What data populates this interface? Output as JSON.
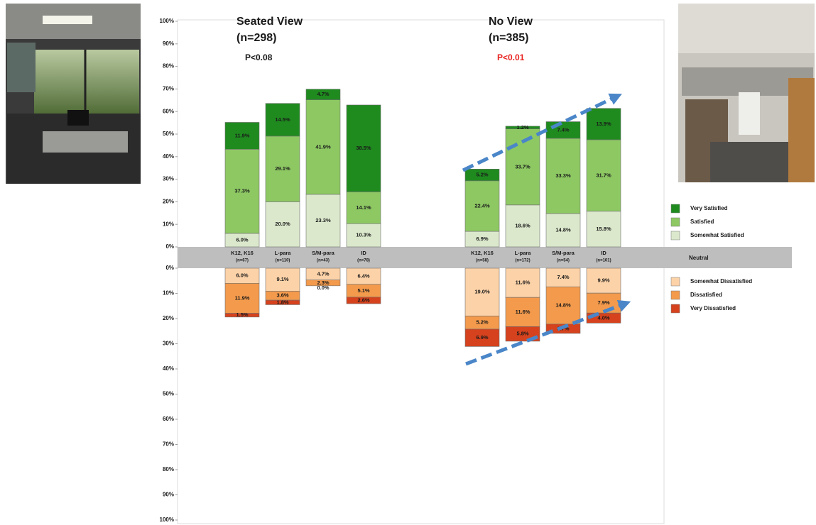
{
  "chart_data": {
    "type": "diverging_stacked_bar",
    "ylim": [
      0,
      100
    ],
    "ylim_lower": [
      0,
      100
    ],
    "yticks": [
      {
        "value": 0,
        "label": "0%"
      },
      {
        "value": 10,
        "label": "10%"
      },
      {
        "value": 20,
        "label": "20%"
      },
      {
        "value": 30,
        "label": "30%"
      },
      {
        "value": 40,
        "label": "40%"
      },
      {
        "value": 50,
        "label": "50%"
      },
      {
        "value": 60,
        "label": "60%"
      },
      {
        "value": 70,
        "label": "70%"
      },
      {
        "value": 80,
        "label": "80%"
      },
      {
        "value": 90,
        "label": "90%"
      },
      {
        "value": 100,
        "label": "100%"
      }
    ],
    "neutral_label": "Neutral",
    "groups": [
      {
        "title": "Seated View",
        "subtitle": "(n=298)",
        "p_value": "P<0.08",
        "p_color": "#1a1a1a",
        "categories": [
          {
            "label": "K12, K16",
            "n": "(n=67)"
          },
          {
            "label": "L-para",
            "n": "(n=110)"
          },
          {
            "label": "S/M-para",
            "n": "(n=43)"
          },
          {
            "label": "ID",
            "n": "(n=78)"
          }
        ]
      },
      {
        "title": "No View",
        "subtitle": "(n=385)",
        "p_value": "P<0.01",
        "p_color": "#e8231e",
        "categories": [
          {
            "label": "K12, K16",
            "n": "(n=58)"
          },
          {
            "label": "L-para",
            "n": "(n=172)"
          },
          {
            "label": "S/M-para",
            "n": "(n=54)"
          },
          {
            "label": "ID",
            "n": "(n=101)"
          }
        ]
      }
    ],
    "series": [
      {
        "name": "Somewhat Satisfied",
        "color": "#dbe8cc",
        "side": "up",
        "values": [
          [
            6.0,
            20.0,
            23.3,
            10.3
          ],
          [
            6.9,
            18.6,
            14.8,
            15.8
          ]
        ],
        "value_labels": [
          [
            "6.0%",
            "20.0%",
            "23.3%",
            "10.3%"
          ],
          [
            "6.9%",
            "18.6%",
            "14.8%",
            "15.8%"
          ]
        ]
      },
      {
        "name": "Satisfied",
        "color": "#8dc863",
        "side": "up",
        "values": [
          [
            37.3,
            29.1,
            41.9,
            14.1
          ],
          [
            22.4,
            33.7,
            33.3,
            31.7
          ]
        ],
        "value_labels": [
          [
            "37.3%",
            "29.1%",
            "41.9%",
            "14.1%"
          ],
          [
            "22.4%",
            "33.7%",
            "33.3%",
            "31.7%"
          ]
        ]
      },
      {
        "name": "Very Satisfied",
        "color": "#1f8b1f",
        "side": "up",
        "values": [
          [
            11.9,
            14.5,
            4.7,
            38.5
          ],
          [
            5.2,
            1.2,
            7.4,
            13.9
          ]
        ],
        "value_labels": [
          [
            "11.9%",
            "14.5%",
            "4.7%",
            "38.5%"
          ],
          [
            "5.2%",
            "1.2%",
            "7.4%",
            "13.9%"
          ]
        ]
      },
      {
        "name": "Somewhat Dissatisfied",
        "color": "#fcd2a8",
        "side": "down",
        "values": [
          [
            6.0,
            9.1,
            4.7,
            6.4
          ],
          [
            19.0,
            11.6,
            7.4,
            9.9
          ]
        ],
        "value_labels": [
          [
            "6.0%",
            "9.1%",
            "4.7%",
            "6.4%"
          ],
          [
            "19.0%",
            "11.6%",
            "7.4%",
            "9.9%"
          ]
        ]
      },
      {
        "name": "Dissatisfied",
        "color": "#f39a4c",
        "side": "down",
        "values": [
          [
            11.9,
            3.6,
            2.3,
            5.1
          ],
          [
            5.2,
            11.6,
            14.8,
            7.9
          ]
        ],
        "value_labels": [
          [
            "11.9%",
            "3.6%",
            "2.3%",
            "5.1%"
          ],
          [
            "5.2%",
            "11.6%",
            "14.8%",
            "7.9%"
          ]
        ]
      },
      {
        "name": "Very Dissatisfied",
        "color": "#d5421d",
        "side": "down",
        "values": [
          [
            1.5,
            1.8,
            0.0,
            2.6
          ],
          [
            6.9,
            5.8,
            3.7,
            4.0
          ]
        ],
        "value_labels": [
          [
            "1.5%",
            "1.8%",
            "0.0%",
            "2.6%"
          ],
          [
            "6.9%",
            "5.8%",
            "3.7%",
            "4.0%"
          ]
        ]
      }
    ]
  }
}
